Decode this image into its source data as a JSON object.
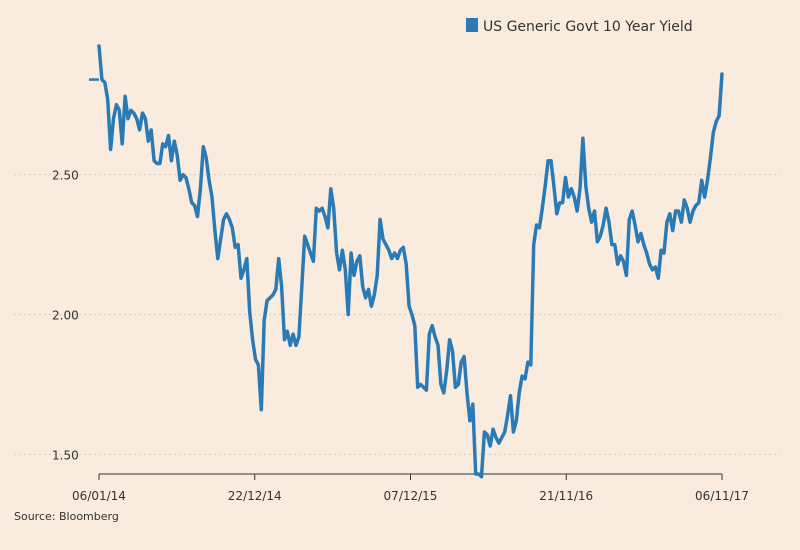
{
  "colors": {
    "background": "#f9ecdf",
    "line": "#2a7ab6",
    "grid": "#d9cbbd",
    "axis": "#333333"
  },
  "source_text": "Source: Bloomberg",
  "chart_data": {
    "type": "line",
    "title": "",
    "xlabel": "",
    "ylabel": "",
    "ylim": [
      1.43,
      2.96
    ],
    "y_ticks": [
      1.5,
      2.0,
      2.5
    ],
    "y_tick_labels": [
      "1.50",
      "2.00",
      "2.50"
    ],
    "x_tick_labels": [
      "06/01/14",
      "22/12/14",
      "07/12/15",
      "21/11/16",
      "06/11/17"
    ],
    "grid": true,
    "legend": "top-right",
    "series": [
      {
        "name": "US Generic Govt 10 Year Yield",
        "values": [
          2.96,
          2.84,
          2.83,
          2.77,
          2.59,
          2.7,
          2.75,
          2.73,
          2.61,
          2.78,
          2.7,
          2.73,
          2.72,
          2.7,
          2.66,
          2.72,
          2.7,
          2.62,
          2.66,
          2.55,
          2.54,
          2.54,
          2.61,
          2.6,
          2.64,
          2.55,
          2.62,
          2.57,
          2.48,
          2.5,
          2.49,
          2.45,
          2.4,
          2.39,
          2.35,
          2.45,
          2.6,
          2.56,
          2.48,
          2.42,
          2.3,
          2.2,
          2.27,
          2.34,
          2.36,
          2.34,
          2.31,
          2.24,
          2.25,
          2.13,
          2.16,
          2.2,
          2.01,
          1.91,
          1.84,
          1.82,
          1.66,
          1.98,
          2.05,
          2.06,
          2.07,
          2.09,
          2.2,
          2.1,
          1.91,
          1.94,
          1.89,
          1.93,
          1.89,
          1.92,
          2.1,
          2.28,
          2.25,
          2.22,
          2.19,
          2.38,
          2.37,
          2.38,
          2.35,
          2.31,
          2.45,
          2.38,
          2.22,
          2.16,
          2.23,
          2.16,
          2.0,
          2.22,
          2.14,
          2.19,
          2.21,
          2.1,
          2.06,
          2.09,
          2.03,
          2.07,
          2.14,
          2.34,
          2.27,
          2.25,
          2.23,
          2.2,
          2.22,
          2.2,
          2.23,
          2.24,
          2.18,
          2.03,
          2.0,
          1.96,
          1.74,
          1.75,
          1.74,
          1.73,
          1.93,
          1.96,
          1.92,
          1.89,
          1.75,
          1.72,
          1.8,
          1.91,
          1.87,
          1.74,
          1.75,
          1.83,
          1.85,
          1.72,
          1.62,
          1.68,
          1.43,
          1.43,
          1.42,
          1.58,
          1.57,
          1.53,
          1.59,
          1.56,
          1.54,
          1.56,
          1.58,
          1.64,
          1.71,
          1.58,
          1.62,
          1.72,
          1.78,
          1.77,
          1.83,
          1.82,
          2.25,
          2.32,
          2.31,
          2.38,
          2.46,
          2.55,
          2.55,
          2.46,
          2.36,
          2.4,
          2.4,
          2.49,
          2.42,
          2.45,
          2.42,
          2.37,
          2.45,
          2.63,
          2.46,
          2.38,
          2.33,
          2.37,
          2.26,
          2.28,
          2.32,
          2.38,
          2.33,
          2.25,
          2.25,
          2.18,
          2.21,
          2.19,
          2.14,
          2.34,
          2.37,
          2.32,
          2.26,
          2.29,
          2.25,
          2.22,
          2.18,
          2.16,
          2.17,
          2.13,
          2.23,
          2.22,
          2.33,
          2.36,
          2.3,
          2.37,
          2.37,
          2.33,
          2.41,
          2.38,
          2.33,
          2.37,
          2.39,
          2.4,
          2.48,
          2.42,
          2.48,
          2.56,
          2.65,
          2.69,
          2.71,
          2.86
        ]
      }
    ]
  }
}
